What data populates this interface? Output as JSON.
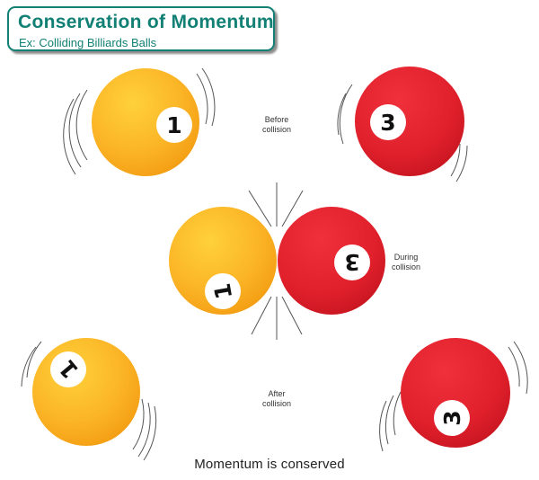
{
  "header": {
    "title": "Conservation of Momentum",
    "subtitle": "Ex: Colliding Billiards Balls"
  },
  "stages": {
    "before": {
      "line1": "Before",
      "line2": "collision"
    },
    "during": {
      "line1": "During",
      "line2": "collision"
    },
    "after": {
      "line1": "After",
      "line2": "collision"
    }
  },
  "balls": {
    "ball1": {
      "number": "1",
      "color": "#f9ab1d"
    },
    "ball3": {
      "number": "3",
      "color": "#e0202b"
    }
  },
  "caption": "Momentum is conserved"
}
